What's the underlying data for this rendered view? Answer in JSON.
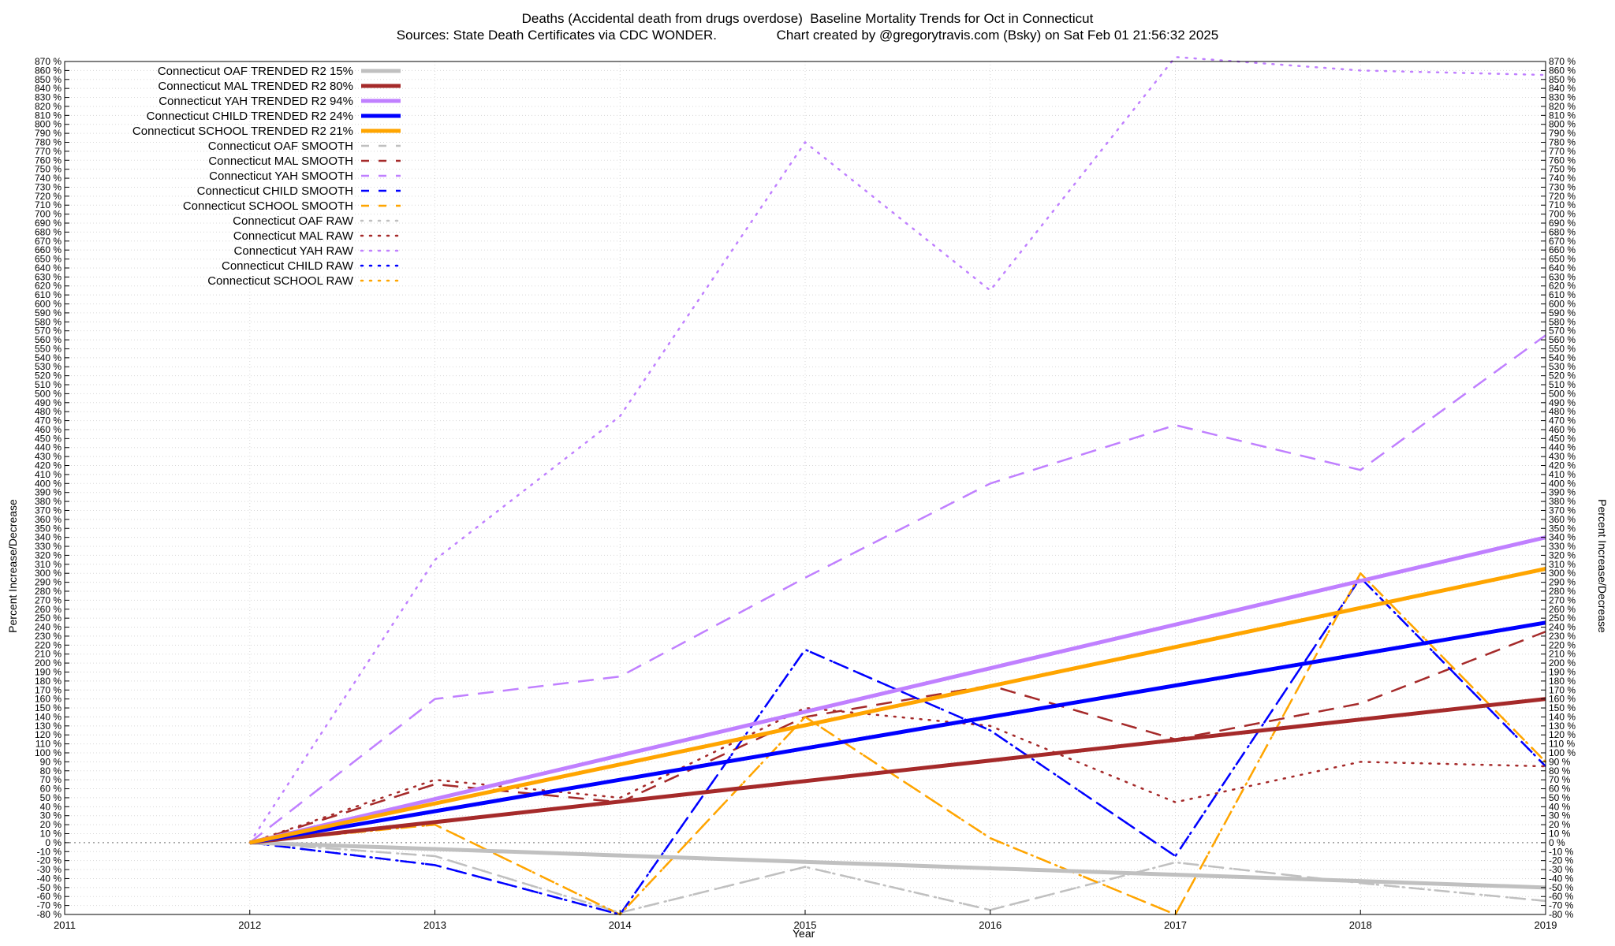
{
  "header": {
    "title": "Deaths (Accidental death from drugs overdose)  Baseline Mortality Trends for Oct in Connecticut",
    "subtitle": "Sources: State Death Certificates via CDC WONDER.                Chart created by @gregorytravis.com (Bsky) on Sat Feb 01 21:56:32 2025"
  },
  "chart_data": {
    "type": "line",
    "xlabel": "Year",
    "ylabel": "Percent Increase/Decrease",
    "y2label": "Percent Increase/Decrease",
    "xlim": [
      2011,
      2019
    ],
    "ylim": [
      -80,
      870
    ],
    "ytick_step": 10,
    "ytick_suffix": " %",
    "xticks": [
      2011,
      2012,
      2013,
      2014,
      2015,
      2016,
      2017,
      2018,
      2019
    ],
    "grid": true,
    "legend_position": "top-left",
    "zero_line": true,
    "series": [
      {
        "name": "Connecticut OAF TRENDED R2  15%",
        "style": "solid",
        "color": "#c0c0c0",
        "width": 5,
        "x": [
          2012,
          2019
        ],
        "y": [
          0,
          -50
        ]
      },
      {
        "name": "Connecticut MAL TRENDED R2  80%",
        "style": "solid",
        "color": "#a52a2a",
        "width": 5,
        "x": [
          2012,
          2019
        ],
        "y": [
          0,
          160
        ]
      },
      {
        "name": "Connecticut YAH TRENDED R2  94%",
        "style": "solid",
        "color": "#c080ff",
        "width": 5,
        "x": [
          2012,
          2019
        ],
        "y": [
          0,
          340
        ]
      },
      {
        "name": "Connecticut CHILD TRENDED R2  24%",
        "style": "solid",
        "color": "#0000ff",
        "width": 5,
        "x": [
          2012,
          2019
        ],
        "y": [
          0,
          245
        ]
      },
      {
        "name": "Connecticut SCHOOL TRENDED R2  21%",
        "style": "solid",
        "color": "#ffa500",
        "width": 5,
        "x": [
          2012,
          2019
        ],
        "y": [
          0,
          305
        ]
      },
      {
        "name": "Connecticut OAF SMOOTH",
        "style": "dashed",
        "color": "#c0c0c0",
        "width": 2.5,
        "x": [
          2012,
          2013,
          2014,
          2015,
          2016,
          2017,
          2018,
          2019
        ],
        "y": [
          0,
          -15,
          -78,
          -27,
          -75,
          -22,
          -45,
          -65
        ]
      },
      {
        "name": "Connecticut MAL SMOOTH",
        "style": "dashed",
        "color": "#a52a2a",
        "width": 2.5,
        "x": [
          2012,
          2013,
          2014,
          2015,
          2016,
          2017,
          2018,
          2019
        ],
        "y": [
          0,
          65,
          45,
          140,
          175,
          115,
          155,
          235
        ]
      },
      {
        "name": "Connecticut YAH SMOOTH",
        "style": "dashed",
        "color": "#c080ff",
        "width": 2.5,
        "x": [
          2012,
          2013,
          2014,
          2015,
          2016,
          2017,
          2018,
          2019
        ],
        "y": [
          0,
          160,
          185,
          295,
          400,
          465,
          415,
          565
        ]
      },
      {
        "name": "Connecticut CHILD SMOOTH",
        "style": "dashed",
        "color": "#0000ff",
        "width": 2.5,
        "x": [
          2012,
          2013,
          2014,
          2015,
          2016,
          2017,
          2018,
          2019
        ],
        "y": [
          0,
          -25,
          -85,
          215,
          125,
          -15,
          295,
          85
        ]
      },
      {
        "name": "Connecticut SCHOOL SMOOTH",
        "style": "dashed",
        "color": "#ffa500",
        "width": 2.5,
        "x": [
          2012,
          2013,
          2014,
          2015,
          2016,
          2017,
          2018,
          2019
        ],
        "y": [
          0,
          20,
          -85,
          140,
          5,
          -85,
          300,
          90
        ]
      },
      {
        "name": "Connecticut OAF RAW",
        "style": "dotted",
        "color": "#c0c0c0",
        "width": 2.5,
        "x": [
          2012,
          2013,
          2014,
          2015,
          2016,
          2017,
          2018,
          2019
        ],
        "y": [
          0,
          -15,
          -78,
          -27,
          -75,
          -22,
          -45,
          -65
        ]
      },
      {
        "name": "Connecticut MAL RAW",
        "style": "dotted",
        "color": "#a52a2a",
        "width": 2.5,
        "x": [
          2012,
          2013,
          2014,
          2015,
          2016,
          2017,
          2018,
          2019
        ],
        "y": [
          0,
          70,
          50,
          150,
          130,
          45,
          90,
          85
        ]
      },
      {
        "name": "Connecticut YAH RAW",
        "style": "dotted",
        "color": "#c080ff",
        "width": 2.5,
        "x": [
          2012,
          2013,
          2014,
          2015,
          2016,
          2017,
          2018,
          2019
        ],
        "y": [
          0,
          315,
          475,
          780,
          615,
          875,
          860,
          855
        ]
      },
      {
        "name": "Connecticut CHILD RAW",
        "style": "dotted",
        "color": "#0000ff",
        "width": 2.5,
        "x": [
          2012,
          2013,
          2014,
          2015,
          2016,
          2017,
          2018,
          2019
        ],
        "y": [
          0,
          -25,
          -85,
          215,
          125,
          -15,
          295,
          85
        ]
      },
      {
        "name": "Connecticut SCHOOL RAW",
        "style": "dotted",
        "color": "#ffa500",
        "width": 2.5,
        "x": [
          2012,
          2013,
          2014,
          2015,
          2016,
          2017,
          2018,
          2019
        ],
        "y": [
          0,
          20,
          -85,
          140,
          5,
          -85,
          300,
          90
        ]
      }
    ]
  }
}
